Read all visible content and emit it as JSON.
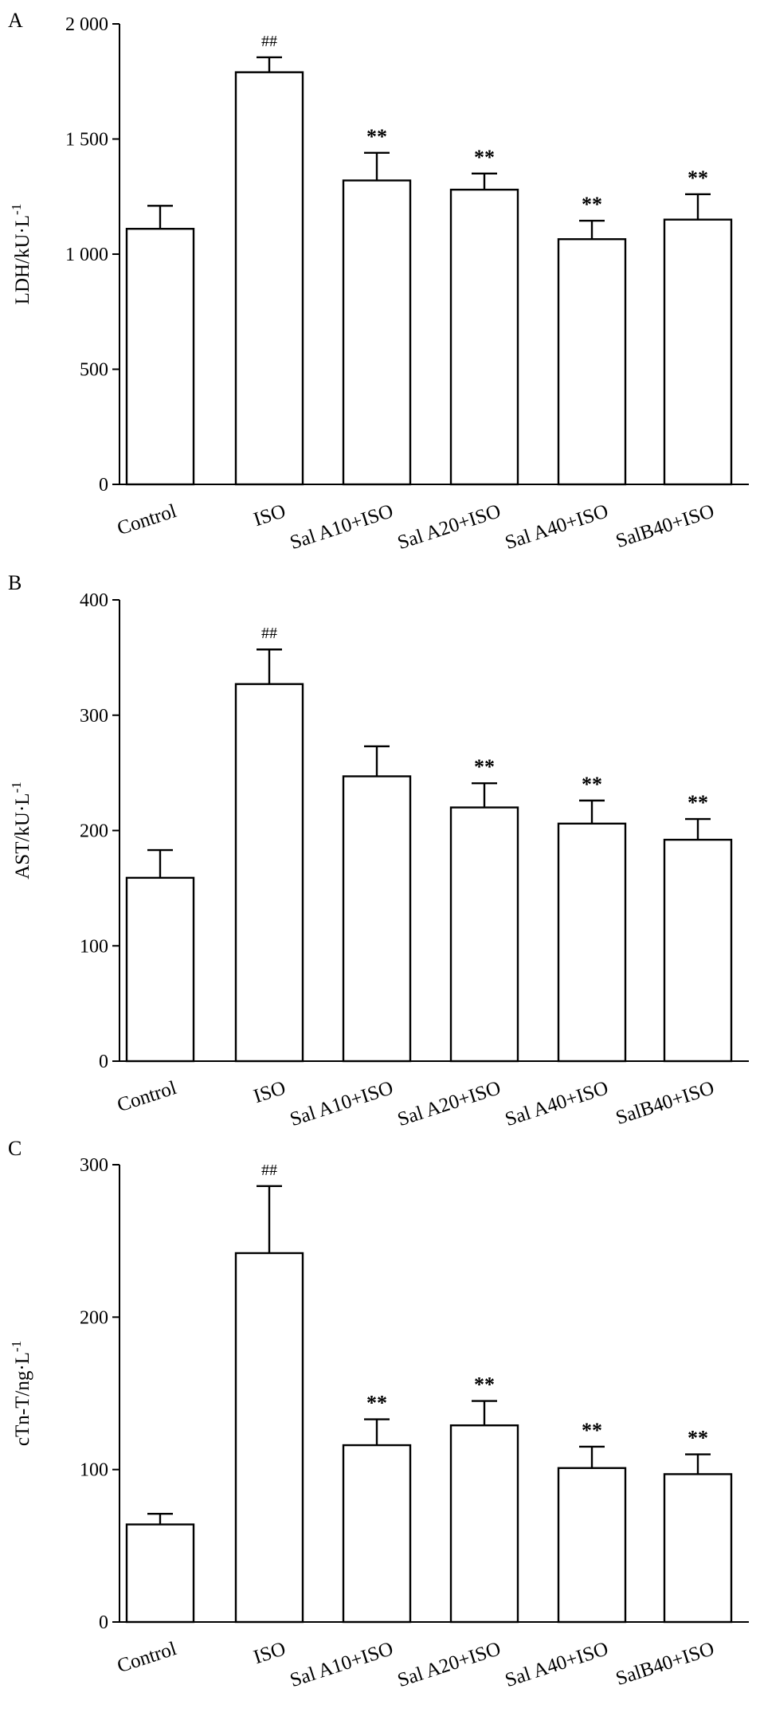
{
  "chart_data": [
    {
      "type": "bar",
      "panel": "A",
      "ylabel": "LDH/kU·L",
      "ylabel_sup": "-1",
      "ylim": [
        0,
        2000
      ],
      "yticks": [
        0,
        500,
        1000,
        1500,
        2000
      ],
      "ytick_labels": [
        "0",
        "500",
        "1 000",
        "1 500",
        "2 000"
      ],
      "categories": [
        "Control",
        "ISO",
        "Sal A10+ISO",
        "Sal A20+ISO",
        "Sal A40+ISO",
        "SalB40+ISO"
      ],
      "values": [
        1110,
        1790,
        1320,
        1280,
        1065,
        1150
      ],
      "errors": [
        100,
        65,
        120,
        70,
        80,
        110
      ],
      "annotations": [
        "",
        "##",
        "**",
        "**",
        "**",
        "**"
      ]
    },
    {
      "type": "bar",
      "panel": "B",
      "ylabel": "AST/kU·L",
      "ylabel_sup": "-1",
      "ylim": [
        0,
        400
      ],
      "yticks": [
        0,
        100,
        200,
        300,
        400
      ],
      "ytick_labels": [
        "0",
        "100",
        "200",
        "300",
        "400"
      ],
      "categories": [
        "Control",
        "ISO",
        "Sal A10+ISO",
        "Sal A20+ISO",
        "Sal A40+ISO",
        "SalB40+ISO"
      ],
      "values": [
        159,
        327,
        247,
        220,
        206,
        192
      ],
      "errors": [
        24,
        30,
        26,
        21,
        20,
        18
      ],
      "annotations": [
        "",
        "##",
        "",
        "**",
        "**",
        "**"
      ]
    },
    {
      "type": "bar",
      "panel": "C",
      "ylabel": "cTn-T/ng·L",
      "ylabel_sup": "-1",
      "ylim": [
        0,
        300
      ],
      "yticks": [
        0,
        100,
        200,
        300
      ],
      "ytick_labels": [
        "0",
        "100",
        "200",
        "300"
      ],
      "categories": [
        "Control",
        "ISO",
        "Sal A10+ISO",
        "Sal A20+ISO",
        "Sal A40+ISO",
        "SalB40+ISO"
      ],
      "values": [
        64,
        242,
        116,
        129,
        101,
        97
      ],
      "errors": [
        7,
        44,
        17,
        16,
        14,
        13
      ],
      "annotations": [
        "",
        "##",
        "**",
        "**",
        "**",
        "**"
      ]
    }
  ]
}
